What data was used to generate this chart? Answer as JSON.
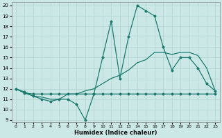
{
  "xlabel": "Humidex (Indice chaleur)",
  "xlim": [
    -0.5,
    23.5
  ],
  "ylim_min": 8.8,
  "ylim_max": 20.3,
  "yticks": [
    9,
    10,
    11,
    12,
    13,
    14,
    15,
    16,
    17,
    18,
    19,
    20
  ],
  "xticks": [
    0,
    1,
    2,
    3,
    4,
    5,
    6,
    7,
    8,
    9,
    10,
    11,
    12,
    13,
    14,
    15,
    16,
    17,
    18,
    19,
    20,
    21,
    22,
    23
  ],
  "bg_color": "#cce8e6",
  "grid_color": "#b0d4d0",
  "line_color": "#1a7a6e",
  "hours": [
    0,
    1,
    2,
    3,
    4,
    5,
    6,
    7,
    8,
    9,
    10,
    11,
    12,
    13,
    14,
    15,
    16,
    17,
    18,
    19,
    20,
    21,
    22,
    23
  ],
  "series_spiky": [
    12.0,
    11.7,
    11.3,
    11.0,
    10.8,
    11.0,
    11.0,
    10.5,
    9.0,
    11.5,
    15.0,
    18.5,
    13.0,
    17.0,
    20.0,
    19.5,
    19.0,
    16.0,
    13.8,
    15.0,
    15.0,
    14.0,
    12.5,
    11.8
  ],
  "series_trend": [
    12.0,
    11.6,
    11.3,
    11.2,
    11.0,
    11.0,
    11.5,
    11.5,
    11.8,
    12.0,
    12.5,
    13.0,
    13.3,
    13.8,
    14.5,
    14.8,
    15.5,
    15.5,
    15.3,
    15.5,
    15.5,
    15.2,
    14.0,
    11.8
  ],
  "series_flat": [
    12.0,
    11.6,
    11.5,
    11.5,
    11.5,
    11.5,
    11.5,
    11.5,
    11.5,
    11.5,
    11.5,
    11.5,
    11.5,
    11.5,
    11.5,
    11.5,
    11.5,
    11.5,
    11.5,
    11.5,
    11.5,
    11.5,
    11.5,
    11.5
  ]
}
